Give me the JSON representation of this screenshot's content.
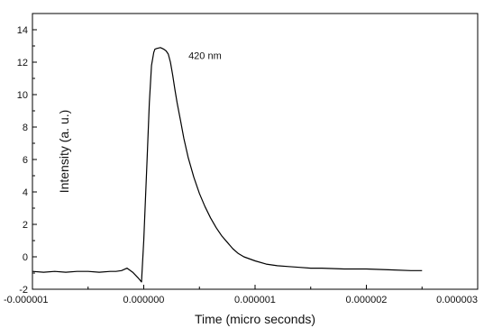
{
  "chart_data": {
    "type": "line",
    "title": "",
    "xlabel": "Time (micro seconds)",
    "ylabel": "Intensity (a. u.)",
    "xlim": [
      -1e-06,
      3e-06
    ],
    "ylim": [
      -2,
      15
    ],
    "x_ticks": [
      -1e-06,
      0.0,
      1e-06,
      2e-06,
      3e-06
    ],
    "x_tick_labels": [
      "-0.000001",
      "0.000000",
      "0.000001",
      "0.000002",
      "0.000003"
    ],
    "y_ticks": [
      -2,
      0,
      2,
      4,
      6,
      8,
      10,
      12,
      14
    ],
    "y_tick_labels": [
      "-2",
      "0",
      "2",
      "4",
      "6",
      "8",
      "10",
      "12",
      "14"
    ],
    "grid": false,
    "annotations": [
      {
        "text": "420 nm",
        "x": 5.5e-07,
        "y": 12.2
      }
    ],
    "series": [
      {
        "x": [
          -1e-06,
          -9e-07,
          -8e-07,
          -7e-07,
          -6e-07,
          -5e-07,
          -4e-07,
          -3e-07,
          -2.5e-07,
          -2e-07,
          -1.5e-07,
          -1e-07,
          -5e-08,
          -2e-08,
          0.0,
          3e-08,
          5e-08,
          7e-08,
          9e-08,
          1e-07,
          1.2e-07,
          1.5e-07,
          1.8e-07,
          2e-07,
          2.2e-07,
          2.4e-07,
          2.6e-07,
          2.8e-07,
          3e-07,
          3.3e-07,
          3.6e-07,
          4e-07,
          4.5e-07,
          5e-07,
          5.5e-07,
          6e-07,
          6.5e-07,
          7e-07,
          7.5e-07,
          8e-07,
          8.5e-07,
          9e-07,
          1e-06,
          1.1e-06,
          1.2e-06,
          1.3e-06,
          1.4e-06,
          1.5e-06,
          1.6e-06,
          1.8e-06,
          2e-06,
          2.2e-06,
          2.4e-06,
          2.5e-06
        ],
        "y": [
          -0.9,
          -0.95,
          -0.9,
          -0.95,
          -0.9,
          -0.9,
          -0.95,
          -0.9,
          -0.9,
          -0.85,
          -0.7,
          -0.95,
          -1.3,
          -1.55,
          1.0,
          6.0,
          9.5,
          11.8,
          12.6,
          12.8,
          12.85,
          12.9,
          12.8,
          12.7,
          12.5,
          12.0,
          11.2,
          10.3,
          9.5,
          8.4,
          7.3,
          6.1,
          4.9,
          3.9,
          3.1,
          2.4,
          1.8,
          1.3,
          0.9,
          0.5,
          0.2,
          0.0,
          -0.25,
          -0.45,
          -0.55,
          -0.6,
          -0.65,
          -0.7,
          -0.7,
          -0.75,
          -0.75,
          -0.8,
          -0.85,
          -0.85
        ]
      }
    ]
  }
}
